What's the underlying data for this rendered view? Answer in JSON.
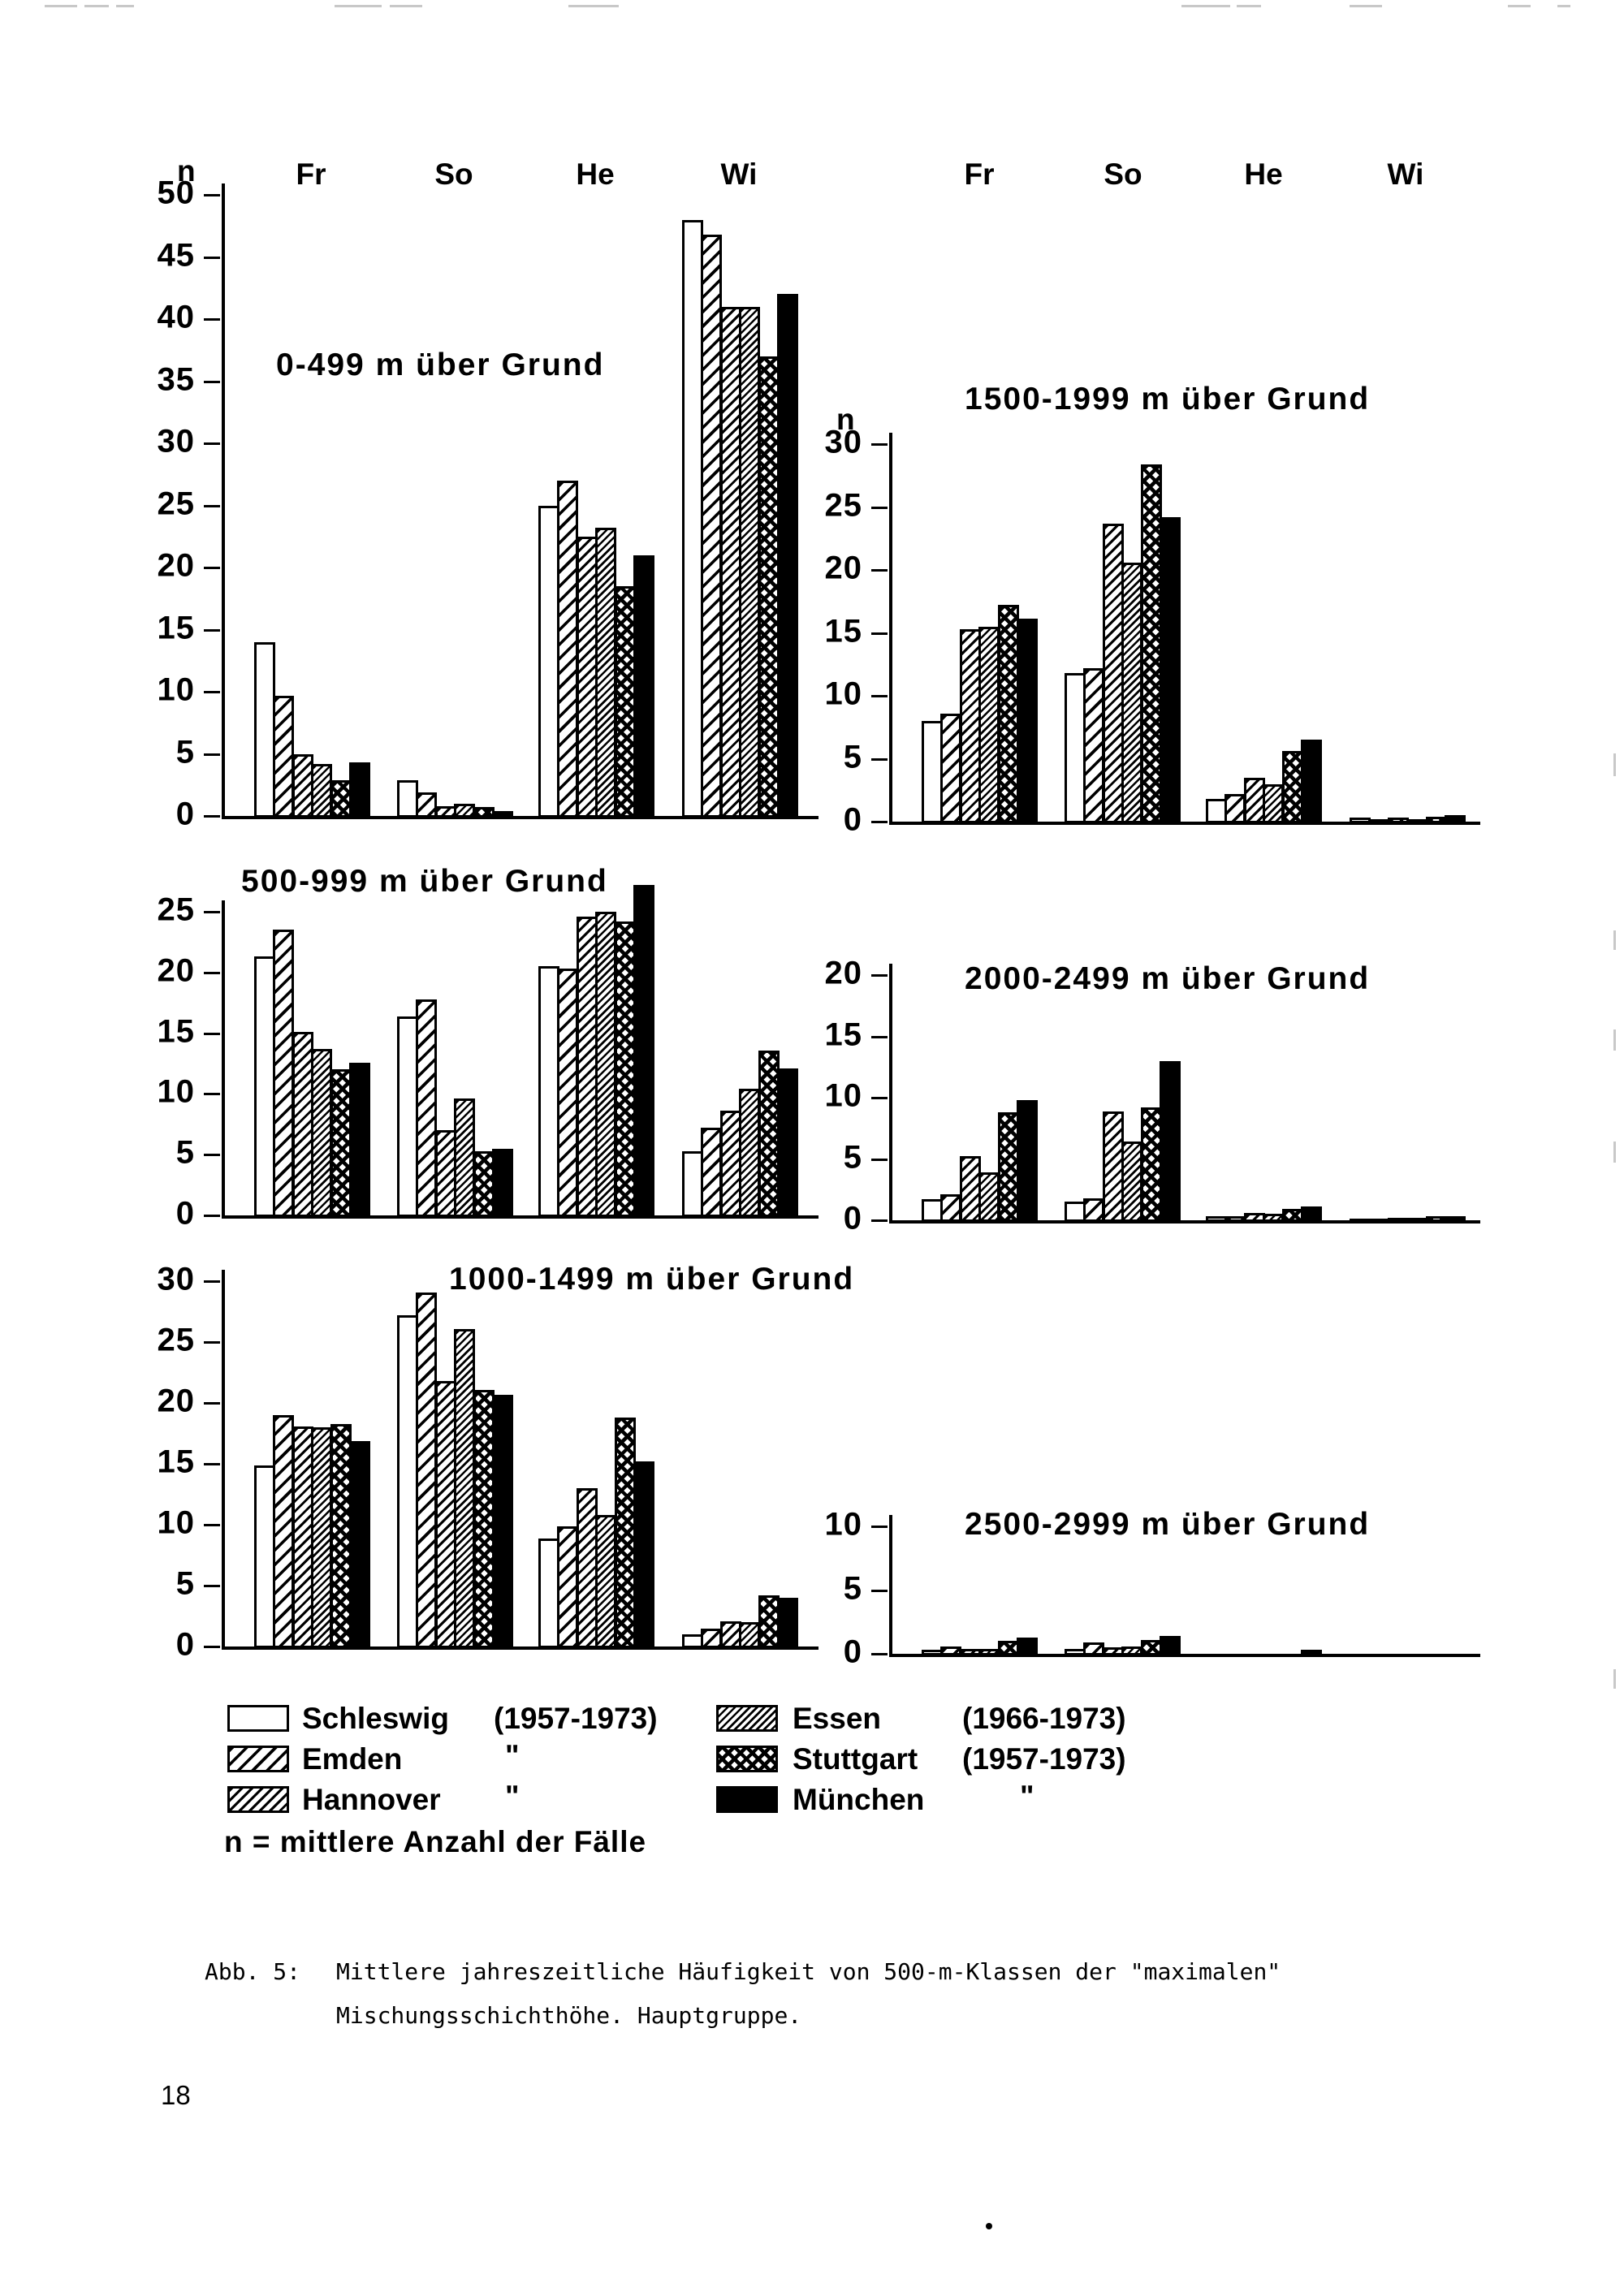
{
  "page": {
    "seasons": [
      "Fr",
      "So",
      "He",
      "Wi"
    ],
    "n_axis_label": "n",
    "note": "n = mittlere Anzahl der Fälle",
    "caption_label": "Abb. 5:",
    "caption_line1": "Mittlere jahreszeitliche Häufigkeit von 500-m-Klassen der \"maximalen\"",
    "caption_line2": "Mischungsschichthöhe. Hauptgruppe.",
    "page_number": "18"
  },
  "legend": {
    "items": [
      {
        "city": "Schleswig",
        "period": "(1957-1973)",
        "pattern": "plain"
      },
      {
        "city": "Emden",
        "period": "\"",
        "pattern": "hatch-wide"
      },
      {
        "city": "Hannover",
        "period": "\"",
        "pattern": "hatch-med"
      },
      {
        "city": "Essen",
        "period": "(1966-1973)",
        "pattern": "hatch-dense"
      },
      {
        "city": "Stuttgart",
        "period": "(1957-1973)",
        "pattern": "crosshatch"
      },
      {
        "city": "München",
        "period": "\"",
        "pattern": "solid"
      }
    ]
  },
  "chart_data": [
    {
      "type": "bar",
      "title": "0-499 m über Grund",
      "ylabel": "n",
      "ylim": [
        0,
        50
      ],
      "tick_step": 5,
      "categories": [
        "Fr",
        "So",
        "He",
        "Wi"
      ],
      "series": [
        {
          "name": "Schleswig",
          "values": [
            14.0,
            2.9,
            25.0,
            48.0
          ]
        },
        {
          "name": "Emden",
          "values": [
            9.7,
            1.9,
            27.0,
            46.8
          ]
        },
        {
          "name": "Hannover",
          "values": [
            5.0,
            0.8,
            22.5,
            41.0
          ]
        },
        {
          "name": "Essen",
          "values": [
            4.2,
            1.0,
            23.2,
            41.0
          ]
        },
        {
          "name": "Stuttgart",
          "values": [
            2.9,
            0.7,
            18.5,
            37.0
          ]
        },
        {
          "name": "München",
          "values": [
            4.3,
            0.4,
            21.0,
            42.0
          ]
        }
      ]
    },
    {
      "type": "bar",
      "title": "1500-1999 m über Grund",
      "ylabel": "n",
      "ylim": [
        0,
        30
      ],
      "tick_step": 5,
      "categories": [
        "Fr",
        "So",
        "He",
        "Wi"
      ],
      "series": [
        {
          "name": "Schleswig",
          "values": [
            8.0,
            11.8,
            1.8,
            0.3
          ]
        },
        {
          "name": "Emden",
          "values": [
            8.6,
            12.2,
            2.2,
            0.2
          ]
        },
        {
          "name": "Hannover",
          "values": [
            15.3,
            23.7,
            3.5,
            0.3
          ]
        },
        {
          "name": "Essen",
          "values": [
            15.5,
            20.6,
            3.0,
            0.2
          ]
        },
        {
          "name": "Stuttgart",
          "values": [
            17.2,
            28.4,
            5.6,
            0.4
          ]
        },
        {
          "name": "München",
          "values": [
            16.1,
            24.2,
            6.5,
            0.5
          ]
        }
      ]
    },
    {
      "type": "bar",
      "title": "500-999 m über Grund",
      "ylabel": "n",
      "ylim": [
        0,
        25
      ],
      "tick_step": 5,
      "categories": [
        "Fr",
        "So",
        "He",
        "Wi"
      ],
      "series": [
        {
          "name": "Schleswig",
          "values": [
            21.3,
            16.4,
            20.5,
            5.3
          ]
        },
        {
          "name": "Emden",
          "values": [
            23.5,
            17.8,
            20.3,
            7.2
          ]
        },
        {
          "name": "Hannover",
          "values": [
            15.1,
            7.0,
            24.6,
            8.6
          ]
        },
        {
          "name": "Essen",
          "values": [
            13.7,
            9.6,
            25.0,
            10.4
          ]
        },
        {
          "name": "Stuttgart",
          "values": [
            12.0,
            5.3,
            24.2,
            13.6
          ]
        },
        {
          "name": "München",
          "values": [
            12.6,
            5.5,
            27.2,
            12.1
          ]
        }
      ]
    },
    {
      "type": "bar",
      "title": "2000-2499 m über Grund",
      "ylabel": "n",
      "ylim": [
        0,
        20
      ],
      "tick_step": 5,
      "categories": [
        "Fr",
        "So",
        "He",
        "Wi"
      ],
      "series": [
        {
          "name": "Schleswig",
          "values": [
            1.7,
            1.5,
            0.3,
            0.1
          ]
        },
        {
          "name": "Emden",
          "values": [
            2.1,
            1.8,
            0.3,
            0.1
          ]
        },
        {
          "name": "Hannover",
          "values": [
            5.2,
            8.9,
            0.6,
            0.2
          ]
        },
        {
          "name": "Essen",
          "values": [
            3.9,
            6.4,
            0.5,
            0.2
          ]
        },
        {
          "name": "Stuttgart",
          "values": [
            8.8,
            9.2,
            0.9,
            0.3
          ]
        },
        {
          "name": "München",
          "values": [
            9.8,
            13.0,
            1.1,
            0.3
          ]
        }
      ]
    },
    {
      "type": "bar",
      "title": "1000-1499 m über Grund",
      "ylabel": "n",
      "ylim": [
        0,
        30
      ],
      "tick_step": 5,
      "categories": [
        "Fr",
        "So",
        "He",
        "Wi"
      ],
      "series": [
        {
          "name": "Schleswig",
          "values": [
            14.9,
            27.2,
            8.9,
            1.0
          ]
        },
        {
          "name": "Emden",
          "values": [
            19.0,
            29.1,
            9.9,
            1.5
          ]
        },
        {
          "name": "Hannover",
          "values": [
            18.1,
            21.8,
            13.0,
            2.1
          ]
        },
        {
          "name": "Essen",
          "values": [
            18.0,
            26.1,
            10.8,
            2.0
          ]
        },
        {
          "name": "Stuttgart",
          "values": [
            18.3,
            21.1,
            18.8,
            4.2
          ]
        },
        {
          "name": "München",
          "values": [
            16.9,
            20.7,
            15.2,
            4.0
          ]
        }
      ]
    },
    {
      "type": "bar",
      "title": "2500-2999 m über Grund",
      "ylabel": "n",
      "ylim": [
        0,
        10
      ],
      "tick_step": 5,
      "categories": [
        "Fr",
        "So",
        "He",
        "Wi"
      ],
      "series": [
        {
          "name": "Schleswig",
          "values": [
            0.3,
            0.4,
            0,
            0
          ]
        },
        {
          "name": "Emden",
          "values": [
            0.6,
            0.9,
            0,
            0
          ]
        },
        {
          "name": "Hannover",
          "values": [
            0.4,
            0.5,
            0,
            0
          ]
        },
        {
          "name": "Essen",
          "values": [
            0.4,
            0.6,
            0,
            0
          ]
        },
        {
          "name": "Stuttgart",
          "values": [
            1.0,
            1.1,
            0,
            0
          ]
        },
        {
          "name": "München",
          "values": [
            1.3,
            1.4,
            0.3,
            0
          ]
        }
      ]
    }
  ]
}
